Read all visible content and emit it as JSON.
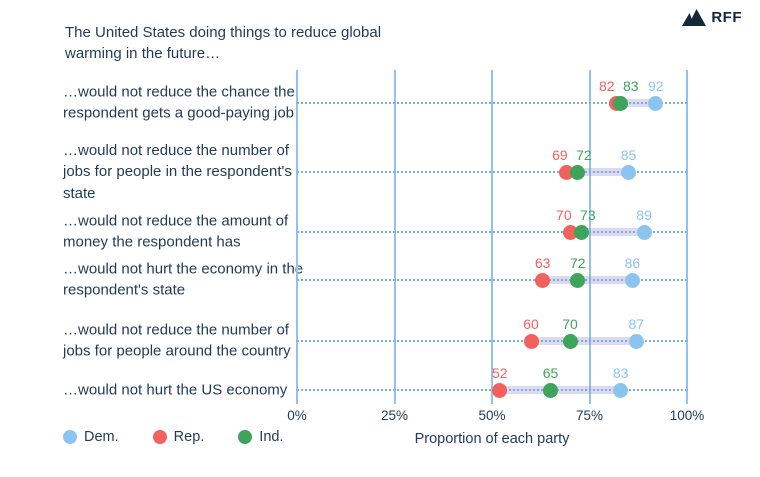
{
  "brand": {
    "name": "RFF"
  },
  "title": "The United States doing things to reduce global warming in the future…",
  "chart_data": {
    "type": "scatter",
    "subtype": "dumbbell-dot-plot",
    "title": "The United States doing things to reduce global warming in the future…",
    "categories": [
      "…would not reduce the chance the respondent gets a good-paying job",
      "…would not reduce the number of jobs for people in the respondent's state",
      "…would not reduce the amount of money the respondent has",
      "…would not hurt the economy in the respondent's state",
      "…would not reduce the number of jobs for people around the country",
      "…would not hurt the US economy"
    ],
    "series": [
      {
        "name": "Dem.",
        "color": "#8CC4F0",
        "values": [
          92,
          85,
          89,
          86,
          87,
          83
        ]
      },
      {
        "name": "Rep.",
        "color": "#F2615E",
        "values": [
          82,
          69,
          70,
          63,
          60,
          52
        ]
      },
      {
        "name": "Ind.",
        "color": "#3FA45B",
        "values": [
          83,
          72,
          73,
          72,
          70,
          65
        ]
      }
    ],
    "xlabel": "Proportion of each party",
    "x_ticks": [
      "0%",
      "25%",
      "50%",
      "75%",
      "100%"
    ],
    "xlim": [
      0,
      100
    ],
    "grid": "vertical solid gridlines + horizontal dotted row guides",
    "legend_position": "bottom-left",
    "connector_color": "rgba(148,130,203,0.30)"
  },
  "colors": {
    "text_navy": "#1F3B57",
    "logo_navy": "#14293B",
    "gridline_blue": "#90C3EE",
    "guide_dotted_blue": "#74AFE2",
    "background": "#FFFFFF"
  }
}
